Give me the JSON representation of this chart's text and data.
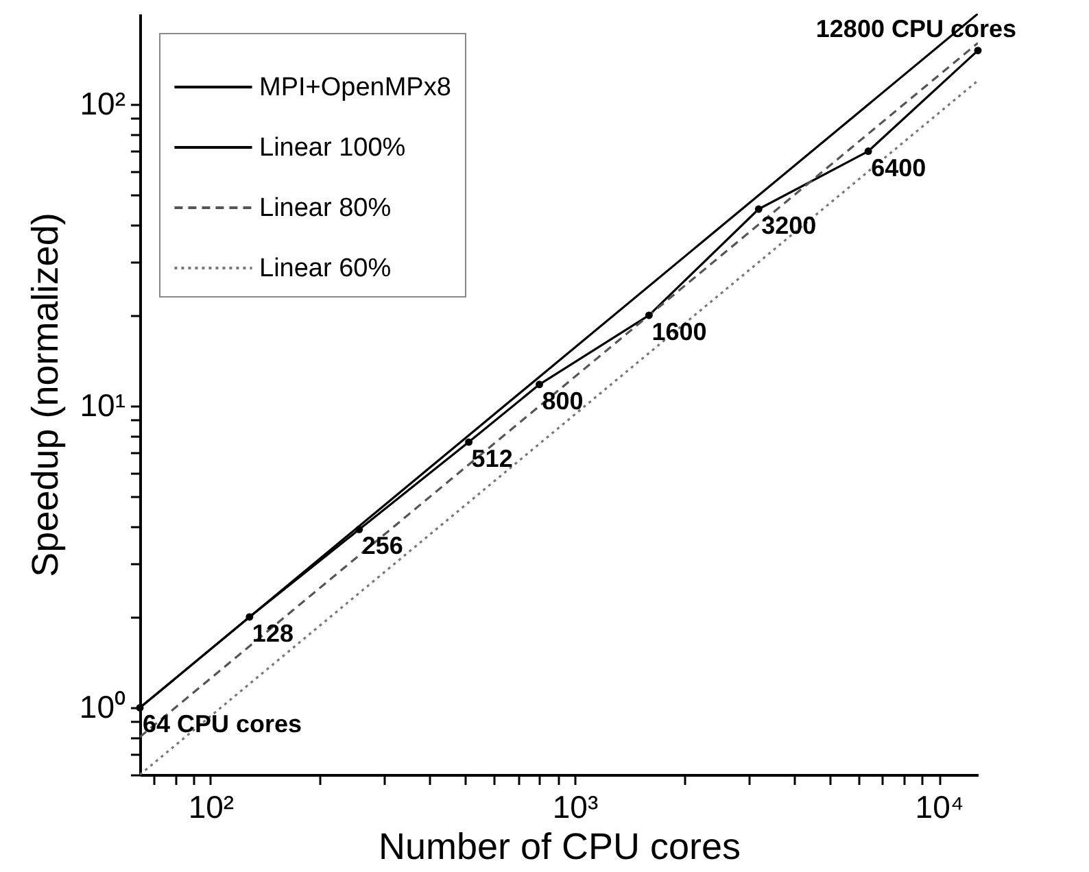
{
  "chart_data": {
    "type": "line",
    "xlabel": "Number of CPU cores",
    "ylabel": "Speedup (normalized)",
    "log": "xy",
    "grid": false,
    "legend": "top left",
    "xlim": [
      64,
      12800
    ],
    "ylim": [
      0.6,
      200
    ],
    "xticks": [
      {
        "value": 70,
        "label": null
      },
      {
        "value": 80,
        "label": null
      },
      {
        "value": 90,
        "label": null
      },
      {
        "value": 100,
        "label": "10²"
      },
      {
        "value": 200,
        "label": null
      },
      {
        "value": 300,
        "label": null
      },
      {
        "value": 400,
        "label": null
      },
      {
        "value": 500,
        "label": null
      },
      {
        "value": 600,
        "label": null
      },
      {
        "value": 700,
        "label": null
      },
      {
        "value": 800,
        "label": null
      },
      {
        "value": 900,
        "label": null
      },
      {
        "value": 1000,
        "label": "10³"
      },
      {
        "value": 2000,
        "label": null
      },
      {
        "value": 3000,
        "label": null
      },
      {
        "value": 4000,
        "label": null
      },
      {
        "value": 5000,
        "label": null
      },
      {
        "value": 6000,
        "label": null
      },
      {
        "value": 7000,
        "label": null
      },
      {
        "value": 8000,
        "label": null
      },
      {
        "value": 9000,
        "label": null
      },
      {
        "value": 10000,
        "label": "10⁴"
      }
    ],
    "yticks": [
      {
        "value": 0.6,
        "label": null
      },
      {
        "value": 0.7,
        "label": null
      },
      {
        "value": 0.8,
        "label": null
      },
      {
        "value": 0.9,
        "label": null
      },
      {
        "value": 1,
        "label": "10⁰"
      },
      {
        "value": 2,
        "label": null
      },
      {
        "value": 3,
        "label": null
      },
      {
        "value": 4,
        "label": null
      },
      {
        "value": 5,
        "label": null
      },
      {
        "value": 6,
        "label": null
      },
      {
        "value": 7,
        "label": null
      },
      {
        "value": 8,
        "label": null
      },
      {
        "value": 9,
        "label": null
      },
      {
        "value": 10,
        "label": "10¹"
      },
      {
        "value": 20,
        "label": null
      },
      {
        "value": 30,
        "label": null
      },
      {
        "value": 40,
        "label": null
      },
      {
        "value": 50,
        "label": null
      },
      {
        "value": 60,
        "label": null
      },
      {
        "value": 70,
        "label": null
      },
      {
        "value": 80,
        "label": null
      },
      {
        "value": 90,
        "label": null
      },
      {
        "value": 100,
        "label": "10²"
      }
    ],
    "series": [
      {
        "name": "MPI+OpenMPx8",
        "color": "#000000",
        "marker": "circle",
        "line_style": "solid",
        "x": [
          64,
          128,
          256,
          512,
          800,
          1600,
          3200,
          6400,
          12800
        ],
        "values": [
          1,
          2.0,
          3.9,
          7.6,
          11.8,
          20,
          45,
          70,
          151
        ]
      },
      {
        "name": "Linear 100%",
        "color": "#000000",
        "line_style": "solid",
        "x": [
          64,
          12800
        ],
        "values": [
          1,
          200
        ]
      },
      {
        "name": "Linear 80%",
        "color": "#555555",
        "line_style": "dashed",
        "x": [
          64,
          12800
        ],
        "values": [
          0.8,
          160
        ]
      },
      {
        "name": "Linear 60%",
        "color": "#777777",
        "line_style": "dotted",
        "x": [
          64,
          12800
        ],
        "values": [
          0.6,
          120
        ]
      }
    ],
    "annotations": [
      {
        "text": "64 CPU cores",
        "x": 64,
        "y": 1
      },
      {
        "text": "128",
        "x": 128,
        "y": 2.0
      },
      {
        "text": "256",
        "x": 256,
        "y": 3.9
      },
      {
        "text": "512",
        "x": 512,
        "y": 7.6
      },
      {
        "text": "800",
        "x": 800,
        "y": 11.8
      },
      {
        "text": "1600",
        "x": 1600,
        "y": 20
      },
      {
        "text": "3200",
        "x": 3200,
        "y": 45
      },
      {
        "text": "6400",
        "x": 6400,
        "y": 70
      },
      {
        "text": "12800 CPU cores",
        "x": 12800,
        "y": 151
      }
    ]
  }
}
